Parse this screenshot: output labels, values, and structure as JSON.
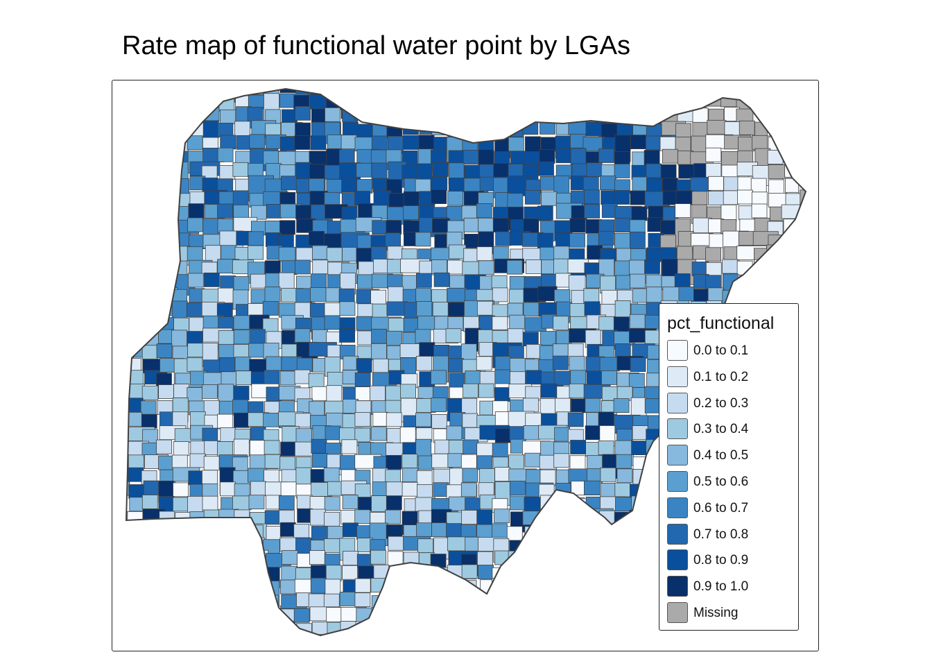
{
  "title": "Rate map of functional water point by LGAs",
  "legend": {
    "title": "pct_functional",
    "items": [
      {
        "label": "0.0 to 0.1",
        "color": "#f7fbff"
      },
      {
        "label": "0.1 to 0.2",
        "color": "#deebf7"
      },
      {
        "label": "0.2 to 0.3",
        "color": "#c6dbef"
      },
      {
        "label": "0.3 to 0.4",
        "color": "#9ecae1"
      },
      {
        "label": "0.4 to 0.5",
        "color": "#86b9dd"
      },
      {
        "label": "0.5 to 0.6",
        "color": "#5a9fd0"
      },
      {
        "label": "0.6 to 0.7",
        "color": "#3a84c3"
      },
      {
        "label": "0.7 to 0.8",
        "color": "#2168b0"
      },
      {
        "label": "0.8 to 0.9",
        "color": "#0a4f9c"
      },
      {
        "label": "0.9 to 1.0",
        "color": "#08306b"
      },
      {
        "label": "Missing",
        "color": "#aaaaaa"
      }
    ]
  },
  "map": {
    "variable": "pct_functional",
    "border_color": "#404040"
  }
}
